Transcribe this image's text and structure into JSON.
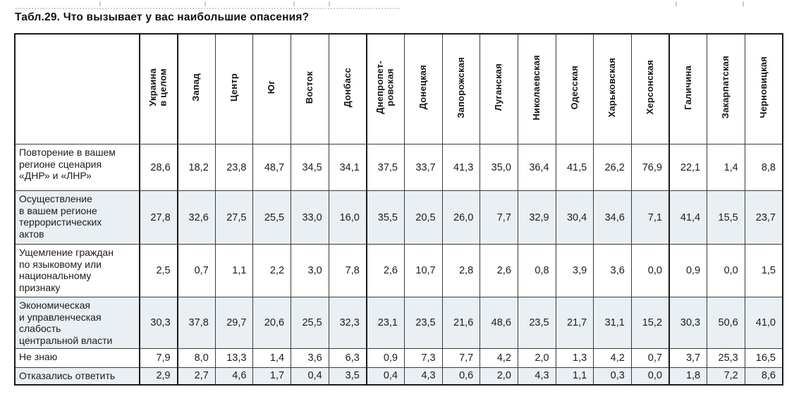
{
  "page": {
    "title": "Табл.29. Что вызывает у вас наибольшие опасения?"
  },
  "colors": {
    "row_shade": "#e9eff2",
    "border_dark": "#1a1a1a",
    "text": "#1c1c1c"
  },
  "table": {
    "corner_label": "",
    "columns": [
      "Украина\nв целом",
      "Запад",
      "Центр",
      "Юг",
      "Восток",
      "Донбасс",
      "Днепропет-\nровская",
      "Донецкая",
      "Запорожская",
      "Луганская",
      "Николаевская",
      "Одесская",
      "Харьковская",
      "Херсонская",
      "Галичина",
      "Закарпатская",
      "Черновицкая"
    ],
    "rows": [
      {
        "label": "Повторение в вашем\nрегионе сценария\n«ДНР» и «ЛНР»",
        "values": [
          "28,6",
          "18,2",
          "23,8",
          "48,7",
          "34,5",
          "34,1",
          "37,5",
          "33,7",
          "41,3",
          "35,0",
          "36,4",
          "41,5",
          "26,2",
          "76,9",
          "22,1",
          "1,4",
          "8,8"
        ]
      },
      {
        "label": "Осуществление\nв вашем регионе\nтеррористических\nактов",
        "values": [
          "27,8",
          "32,6",
          "27,5",
          "25,5",
          "33,0",
          "16,0",
          "35,5",
          "20,5",
          "26,0",
          "7,7",
          "32,9",
          "30,4",
          "34,6",
          "7,1",
          "41,4",
          "15,5",
          "23,7"
        ]
      },
      {
        "label": "Ущемление граждан\nпо языковому или\nнациональному\nпризнаку",
        "values": [
          "2,5",
          "0,7",
          "1,1",
          "2,2",
          "3,0",
          "7,8",
          "2,6",
          "10,7",
          "2,8",
          "2,6",
          "0,8",
          "3,9",
          "3,6",
          "0,0",
          "0,9",
          "0,0",
          "1,5"
        ]
      },
      {
        "label": "Экономическая\nи управленческая\nслабость\nцентральной власти",
        "values": [
          "30,3",
          "37,8",
          "29,7",
          "20,6",
          "25,5",
          "32,3",
          "23,1",
          "23,5",
          "21,6",
          "48,6",
          "23,5",
          "21,7",
          "31,1",
          "15,2",
          "30,3",
          "50,6",
          "41,0"
        ]
      },
      {
        "label": "Не знаю",
        "values": [
          "7,9",
          "8,0",
          "13,3",
          "1,4",
          "3,6",
          "6,3",
          "0,9",
          "7,3",
          "7,7",
          "4,2",
          "2,0",
          "1,3",
          "4,2",
          "0,7",
          "3,7",
          "25,3",
          "16,5"
        ]
      },
      {
        "label": "Отказались ответить",
        "values": [
          "2,9",
          "2,7",
          "4,6",
          "1,7",
          "0,4",
          "3,5",
          "0,4",
          "4,3",
          "0,6",
          "2,0",
          "4,3",
          "1,1",
          "0,3",
          "0,0",
          "1,8",
          "7,2",
          "8,6"
        ]
      }
    ]
  }
}
